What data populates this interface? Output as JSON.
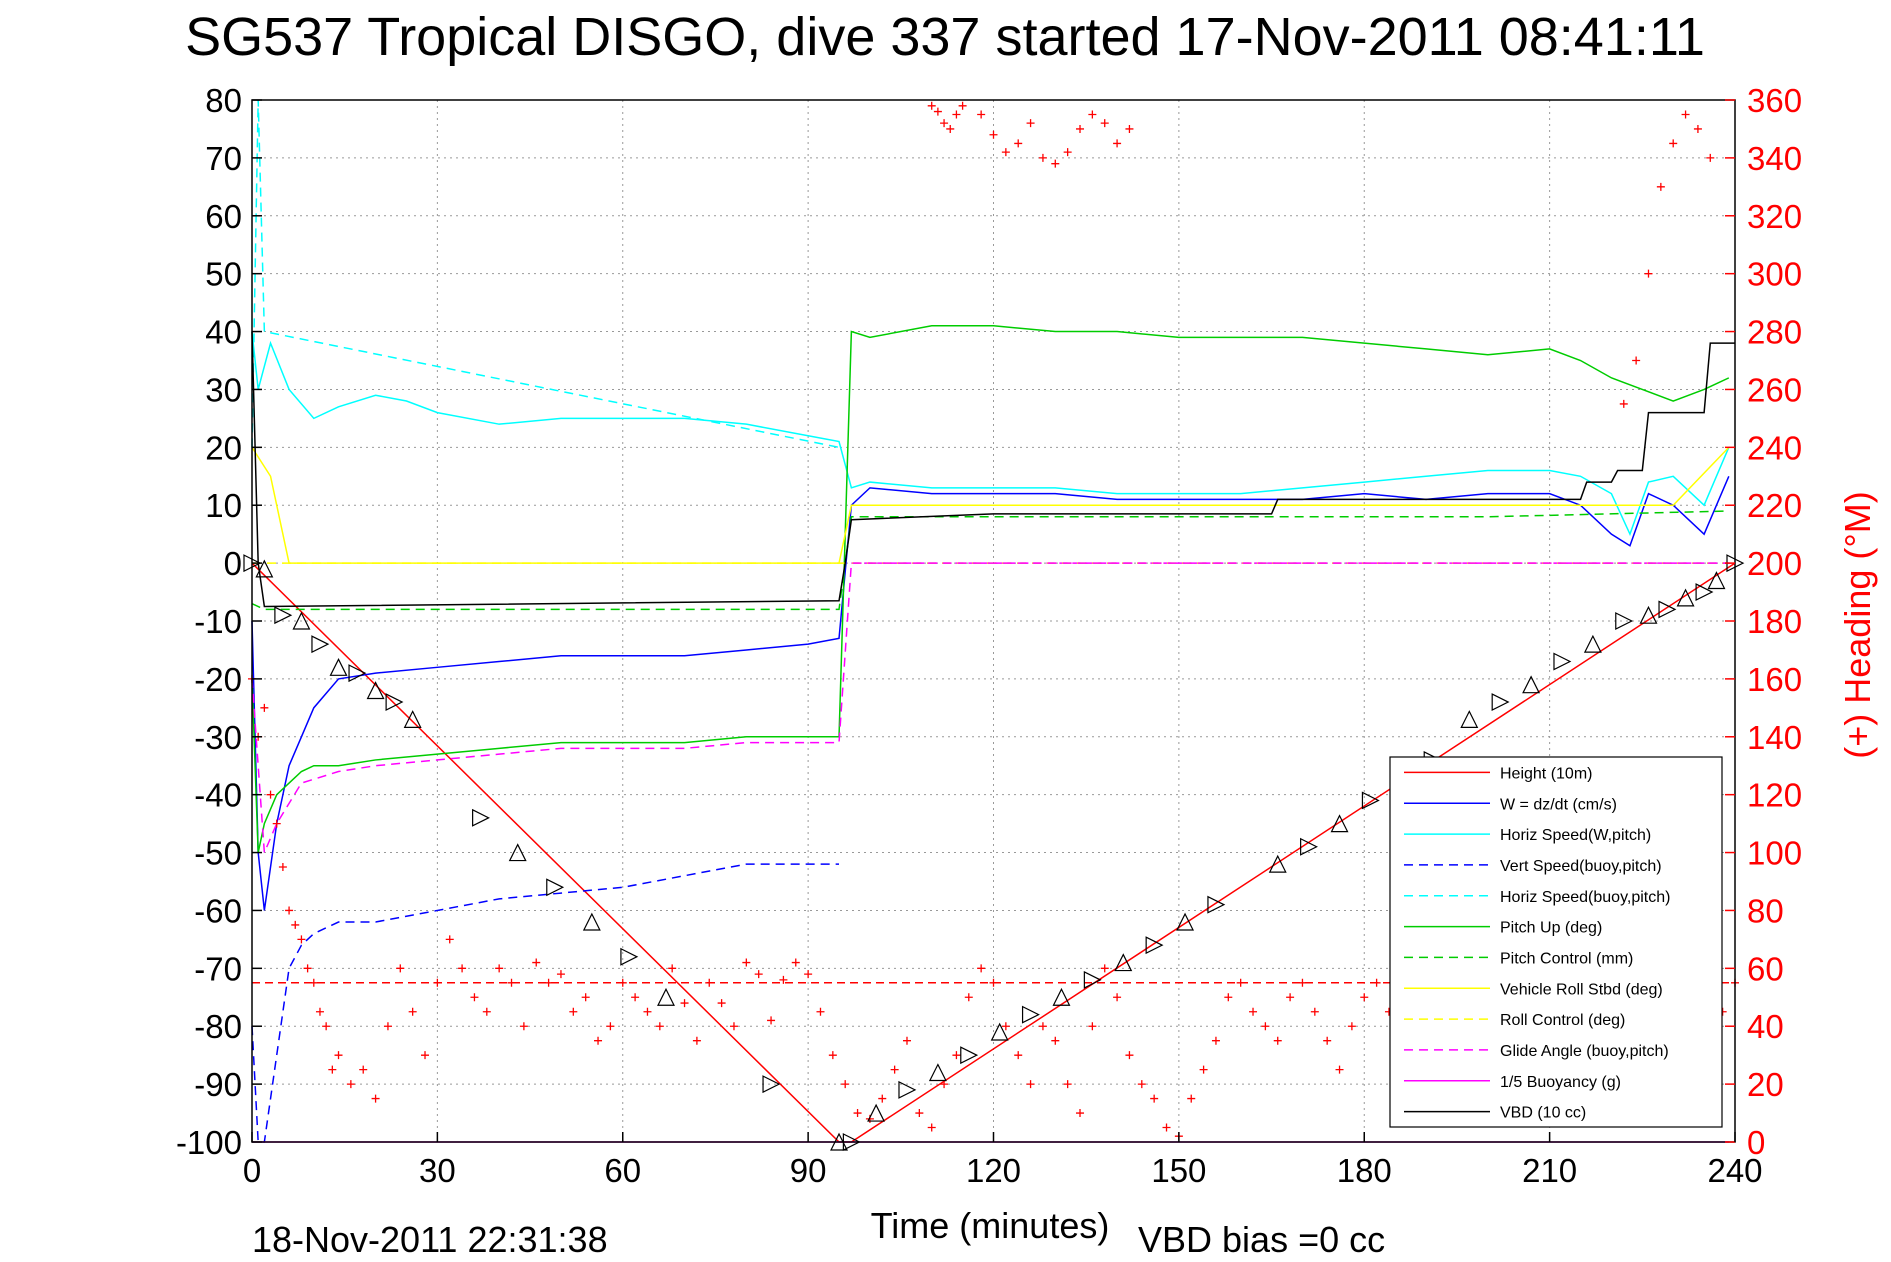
{
  "chart_data": {
    "type": "line",
    "title": "SG537 Tropical DISGO, dive 337 started 17-Nov-2011 08:41:11",
    "xlabel": "Time (minutes)",
    "ylabel": "",
    "ylabel_right": "(+) Heading (°M)",
    "xlim": [
      0,
      240
    ],
    "ylim": [
      -100,
      80
    ],
    "ylim_right": [
      0,
      360
    ],
    "x_ticks": [
      "0",
      "30",
      "60",
      "90",
      "120",
      "150",
      "180",
      "210",
      "240"
    ],
    "y_ticks": [
      "80",
      "70",
      "60",
      "50",
      "40",
      "30",
      "20",
      "10",
      "0",
      "-10",
      "-20",
      "-30",
      "-40",
      "-50",
      "-60",
      "-70",
      "-80",
      "-90",
      "-100"
    ],
    "y_ticks_right": [
      "360",
      "340",
      "320",
      "300",
      "280",
      "260",
      "240",
      "220",
      "200",
      "180",
      "160",
      "140",
      "120",
      "100",
      "80",
      "60",
      "40",
      "20",
      "0"
    ],
    "grid": true,
    "legend_position": "bottom-right",
    "footer_left": "18-Nov-2011 22:31:38",
    "footer_right": "VBD bias =0 cc",
    "series": [
      {
        "name": "Height (10m)",
        "color": "#ff0000",
        "style": "solid",
        "x": [
          0,
          95,
          97,
          240
        ],
        "y": [
          0,
          -100,
          -100,
          0
        ]
      },
      {
        "name": "W = dz/dt (cm/s)",
        "color": "#0000ff",
        "style": "solid",
        "x": [
          0,
          1,
          2,
          4,
          6,
          8,
          10,
          14,
          20,
          30,
          40,
          50,
          60,
          70,
          80,
          90,
          95,
          97,
          100,
          110,
          120,
          130,
          140,
          150,
          160,
          170,
          180,
          190,
          200,
          210,
          215,
          220,
          223,
          226,
          230,
          235,
          239
        ],
        "y": [
          -10,
          -50,
          -60,
          -45,
          -35,
          -30,
          -25,
          -20,
          -19,
          -18,
          -17,
          -16,
          -16,
          -16,
          -15,
          -14,
          -13,
          10,
          13,
          12,
          12,
          12,
          11,
          11,
          11,
          11,
          12,
          11,
          12,
          12,
          10,
          5,
          3,
          12,
          10,
          5,
          15
        ]
      },
      {
        "name": "Horiz Speed(W,pitch)",
        "color": "#00ffff",
        "style": "solid",
        "x": [
          0,
          1,
          3,
          6,
          10,
          14,
          20,
          25,
          30,
          40,
          50,
          60,
          70,
          80,
          90,
          95,
          97,
          100,
          110,
          120,
          130,
          140,
          150,
          160,
          170,
          180,
          190,
          200,
          210,
          215,
          220,
          223,
          226,
          230,
          235,
          239
        ],
        "y": [
          40,
          30,
          38,
          30,
          25,
          27,
          29,
          28,
          26,
          24,
          25,
          25,
          25,
          24,
          22,
          21,
          13,
          14,
          13,
          13,
          13,
          12,
          12,
          12,
          13,
          14,
          15,
          16,
          16,
          15,
          12,
          5,
          14,
          15,
          10,
          20
        ]
      },
      {
        "name": "Vert Speed(buoy,pitch)",
        "color": "#0000ff",
        "style": "dashed",
        "x": [
          0,
          1,
          2,
          4,
          6,
          8,
          10,
          14,
          20,
          30,
          40,
          50,
          60,
          70,
          80,
          90,
          95
        ],
        "y": [
          -80,
          -100,
          -100,
          -85,
          -70,
          -66,
          -64,
          -62,
          -62,
          -60,
          -58,
          -57,
          -56,
          -54,
          -52,
          -52,
          -52
        ]
      },
      {
        "name": "Horiz Speed(buoy,pitch)",
        "color": "#00ffff",
        "style": "dashed",
        "x": [
          0,
          1,
          2,
          95
        ],
        "y": [
          20,
          80,
          40,
          20
        ]
      },
      {
        "name": "Pitch Up (deg)",
        "color": "#00cc00",
        "style": "solid",
        "x": [
          0,
          1,
          2,
          4,
          6,
          8,
          10,
          14,
          20,
          30,
          40,
          50,
          60,
          70,
          80,
          90,
          95,
          97,
          100,
          110,
          120,
          130,
          140,
          150,
          160,
          170,
          180,
          190,
          200,
          210,
          215,
          220,
          225,
          230,
          235,
          239
        ],
        "y": [
          -20,
          -50,
          -45,
          -40,
          -38,
          -36,
          -35,
          -35,
          -34,
          -33,
          -32,
          -31,
          -31,
          -31,
          -30,
          -30,
          -30,
          40,
          39,
          41,
          41,
          40,
          40,
          39,
          39,
          39,
          38,
          37,
          36,
          37,
          35,
          32,
          30,
          28,
          30,
          32
        ]
      },
      {
        "name": "Pitch Control (mm)",
        "color": "#00cc00",
        "style": "dashed",
        "x": [
          0,
          2,
          95,
          97,
          150,
          200,
          239
        ],
        "y": [
          -7,
          -8,
          -8,
          8,
          8,
          8,
          9
        ]
      },
      {
        "name": "Vehicle Roll Stbd (deg)",
        "color": "#ffff00",
        "style": "solid",
        "x": [
          0,
          3,
          6,
          10,
          20,
          30,
          40,
          50,
          60,
          70,
          80,
          90,
          95,
          97,
          110,
          130,
          150,
          170,
          190,
          210,
          230,
          239
        ],
        "y": [
          20,
          15,
          0,
          0,
          0,
          0,
          0,
          0,
          0,
          0,
          0,
          0,
          0,
          10,
          10,
          10,
          10,
          10,
          10,
          10,
          10,
          20
        ]
      },
      {
        "name": "Roll Control (deg)",
        "color": "#ffff00",
        "style": "dashed",
        "x": [
          0,
          95,
          97,
          239
        ],
        "y": [
          0,
          0,
          0,
          0
        ]
      },
      {
        "name": "Glide Angle (buoy,pitch)",
        "color": "#ff00ff",
        "style": "dashed",
        "x": [
          0,
          2,
          4,
          8,
          14,
          20,
          30,
          40,
          50,
          60,
          70,
          80,
          90,
          95,
          97,
          239
        ],
        "y": [
          -20,
          -50,
          -45,
          -38,
          -36,
          -35,
          -34,
          -33,
          -32,
          -32,
          -32,
          -31,
          -31,
          -31,
          0,
          0
        ]
      },
      {
        "name": "1/5 Buoyancy (g)",
        "color": "#ff00ff",
        "style": "solid",
        "x": [
          0,
          200,
          239
        ],
        "y": [
          -100,
          -100,
          -100
        ]
      },
      {
        "name": "VBD (10 cc)",
        "color": "#000000",
        "style": "solid",
        "x": [
          0,
          1,
          2,
          95,
          96,
          97,
          120,
          165,
          166,
          200,
          201,
          215,
          216,
          220,
          221,
          225,
          226,
          235,
          236,
          240
        ],
        "y": [
          40,
          0,
          -7.5,
          -6.5,
          0,
          7.5,
          8.5,
          8.5,
          11,
          11,
          11,
          11,
          14,
          14,
          16,
          16,
          26,
          26,
          38,
          38
        ]
      }
    ],
    "heading_points": {
      "name": "Heading",
      "color": "#ff0000",
      "marker": "+",
      "axis": "right",
      "x": [
        0,
        1,
        2,
        3,
        4,
        5,
        6,
        7,
        8,
        9,
        10,
        11,
        12,
        13,
        14,
        16,
        18,
        20,
        22,
        24,
        26,
        28,
        30,
        32,
        34,
        36,
        38,
        40,
        42,
        44,
        46,
        48,
        50,
        52,
        54,
        56,
        58,
        60,
        62,
        64,
        66,
        68,
        70,
        72,
        74,
        76,
        78,
        80,
        82,
        84,
        86,
        88,
        90,
        92,
        94,
        96,
        98,
        100,
        102,
        104,
        106,
        108,
        110,
        112,
        114,
        116,
        118,
        120,
        122,
        124,
        126,
        128,
        130,
        132,
        134,
        136,
        138,
        140,
        142,
        144,
        146,
        148,
        150,
        152,
        154,
        156,
        158,
        160,
        162,
        164,
        166,
        168,
        170,
        172,
        174,
        176,
        178,
        180,
        182,
        184,
        186,
        188,
        190,
        200,
        210,
        215,
        220,
        222,
        224,
        226,
        228,
        230,
        232,
        234,
        236,
        238,
        240
      ],
      "y": [
        160,
        140,
        150,
        120,
        110,
        95,
        80,
        75,
        70,
        60,
        55,
        45,
        40,
        25,
        30,
        20,
        25,
        15,
        40,
        60,
        45,
        30,
        55,
        70,
        60,
        50,
        45,
        60,
        55,
        40,
        62,
        55,
        58,
        45,
        50,
        35,
        40,
        55,
        50,
        45,
        40,
        60,
        48,
        35,
        55,
        48,
        40,
        62,
        58,
        42,
        56,
        62,
        58,
        45,
        30,
        20,
        10,
        8,
        15,
        25,
        35,
        10,
        5,
        20,
        30,
        50,
        60,
        55,
        40,
        30,
        20,
        40,
        35,
        20,
        10,
        40,
        60,
        50,
        30,
        20,
        15,
        5,
        2,
        15,
        25,
        35,
        50,
        55,
        45,
        40,
        35,
        50,
        55,
        45,
        35,
        25,
        40,
        50,
        55,
        45,
        35,
        40,
        45,
        40,
        35,
        30,
        35,
        255,
        270,
        300,
        330,
        345,
        355,
        350,
        340,
        45,
        55
      ]
    },
    "heading_points_top": {
      "x": [
        110,
        111,
        112,
        113,
        114,
        115,
        118,
        120,
        122,
        124,
        126,
        128,
        130,
        132,
        134,
        136,
        138,
        140,
        142
      ],
      "y": [
        358,
        356,
        352,
        350,
        355,
        358,
        355,
        348,
        342,
        345,
        352,
        340,
        338,
        342,
        350,
        355,
        352,
        345,
        350
      ]
    },
    "markers_triangles": {
      "x": [
        0,
        2,
        5,
        8,
        11,
        14,
        17,
        20,
        23,
        26,
        37,
        43,
        49,
        55,
        61,
        67,
        84,
        95,
        97,
        101,
        106,
        111,
        116,
        121,
        126,
        131,
        136,
        141,
        146,
        151,
        156,
        166,
        171,
        176,
        181,
        186,
        191,
        197,
        202,
        207,
        212,
        217,
        222,
        226,
        229,
        232,
        235,
        237,
        240
      ],
      "y": [
        0,
        -1,
        -9,
        -10,
        -14,
        -18,
        -19,
        -22,
        -24,
        -27,
        -44,
        -50,
        -56,
        -62,
        -68,
        -75,
        -90,
        -100,
        -100,
        -95,
        -91,
        -88,
        -85,
        -81,
        -78,
        -75,
        -72,
        -69,
        -66,
        -62,
        -59,
        -52,
        -49,
        -45,
        -41,
        -38,
        -34,
        -27,
        -24,
        -21,
        -17,
        -14,
        -10,
        -9,
        -8,
        -6,
        -5,
        -3,
        0
      ]
    },
    "reference_lines": [
      {
        "axis": "right",
        "value": 55,
        "color": "#ff0000",
        "style": "dashed"
      },
      {
        "axis": "left",
        "value": 0,
        "color": "#ff00ff",
        "style": "dashed",
        "from_x": 97
      }
    ]
  }
}
